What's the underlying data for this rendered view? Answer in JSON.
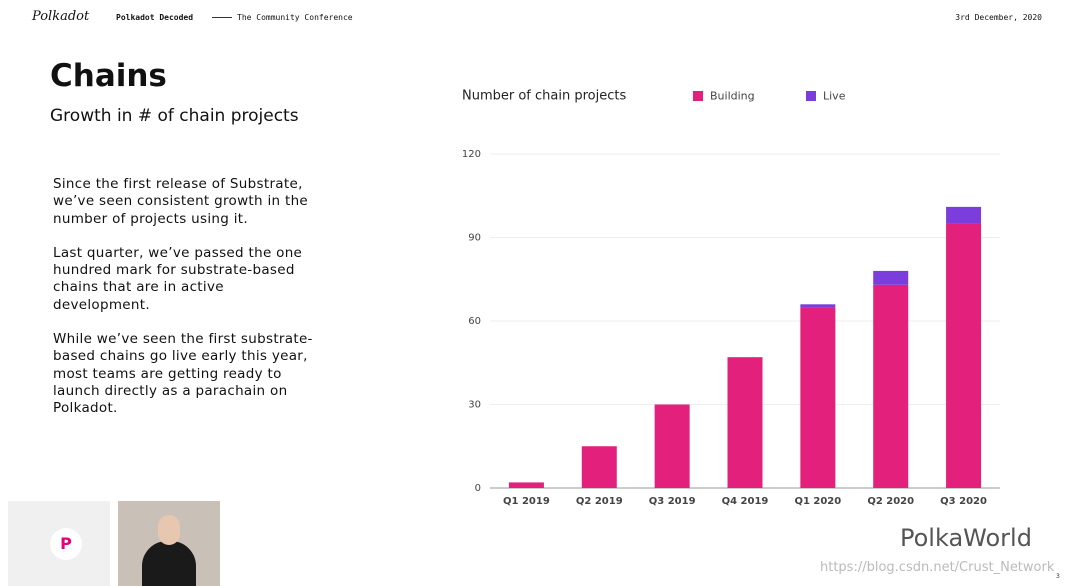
{
  "header": {
    "logo": "Polkadot",
    "event": "Polkadot Decoded",
    "subtitle": "The Community Conference",
    "date": "3rd December, 2020"
  },
  "slide": {
    "title": "Chains",
    "subtitle": "Growth in # of chain projects",
    "paragraphs": [
      [
        "Since the first release of Substrate,",
        "we’ve seen consistent growth in the",
        "number of projects using it."
      ],
      [
        "Last quarter, we’ve passed the one",
        "hundred mark for substrate-based",
        "chains that are in active",
        "development."
      ],
      [
        "While we’ve seen the first substrate-",
        "based chains go live early this year,",
        "most teams are getting ready to",
        "launch directly as a parachain on",
        "Polkadot."
      ]
    ],
    "page_number": "3"
  },
  "watermark": {
    "brand": "PolkaWorld",
    "url": "https://blog.csdn.net/Crust_Network"
  },
  "chart_data": {
    "type": "stacked_bar",
    "title": "Number of chain projects",
    "categories": [
      "Q1 2019",
      "Q2 2019",
      "Q3 2019",
      "Q4 2019",
      "Q1 2020",
      "Q2 2020",
      "Q3 2020"
    ],
    "series": [
      {
        "name": "Building",
        "color": "#e3207b",
        "values": [
          2,
          15,
          30,
          47,
          65,
          73,
          95
        ]
      },
      {
        "name": "Live",
        "color": "#7b3ddc",
        "values": [
          0,
          0,
          0,
          0,
          1,
          5,
          6
        ]
      }
    ],
    "ylim": [
      0,
      120
    ],
    "yticks": [
      0,
      30,
      60,
      90,
      120
    ],
    "grid": true,
    "legend": "top"
  }
}
